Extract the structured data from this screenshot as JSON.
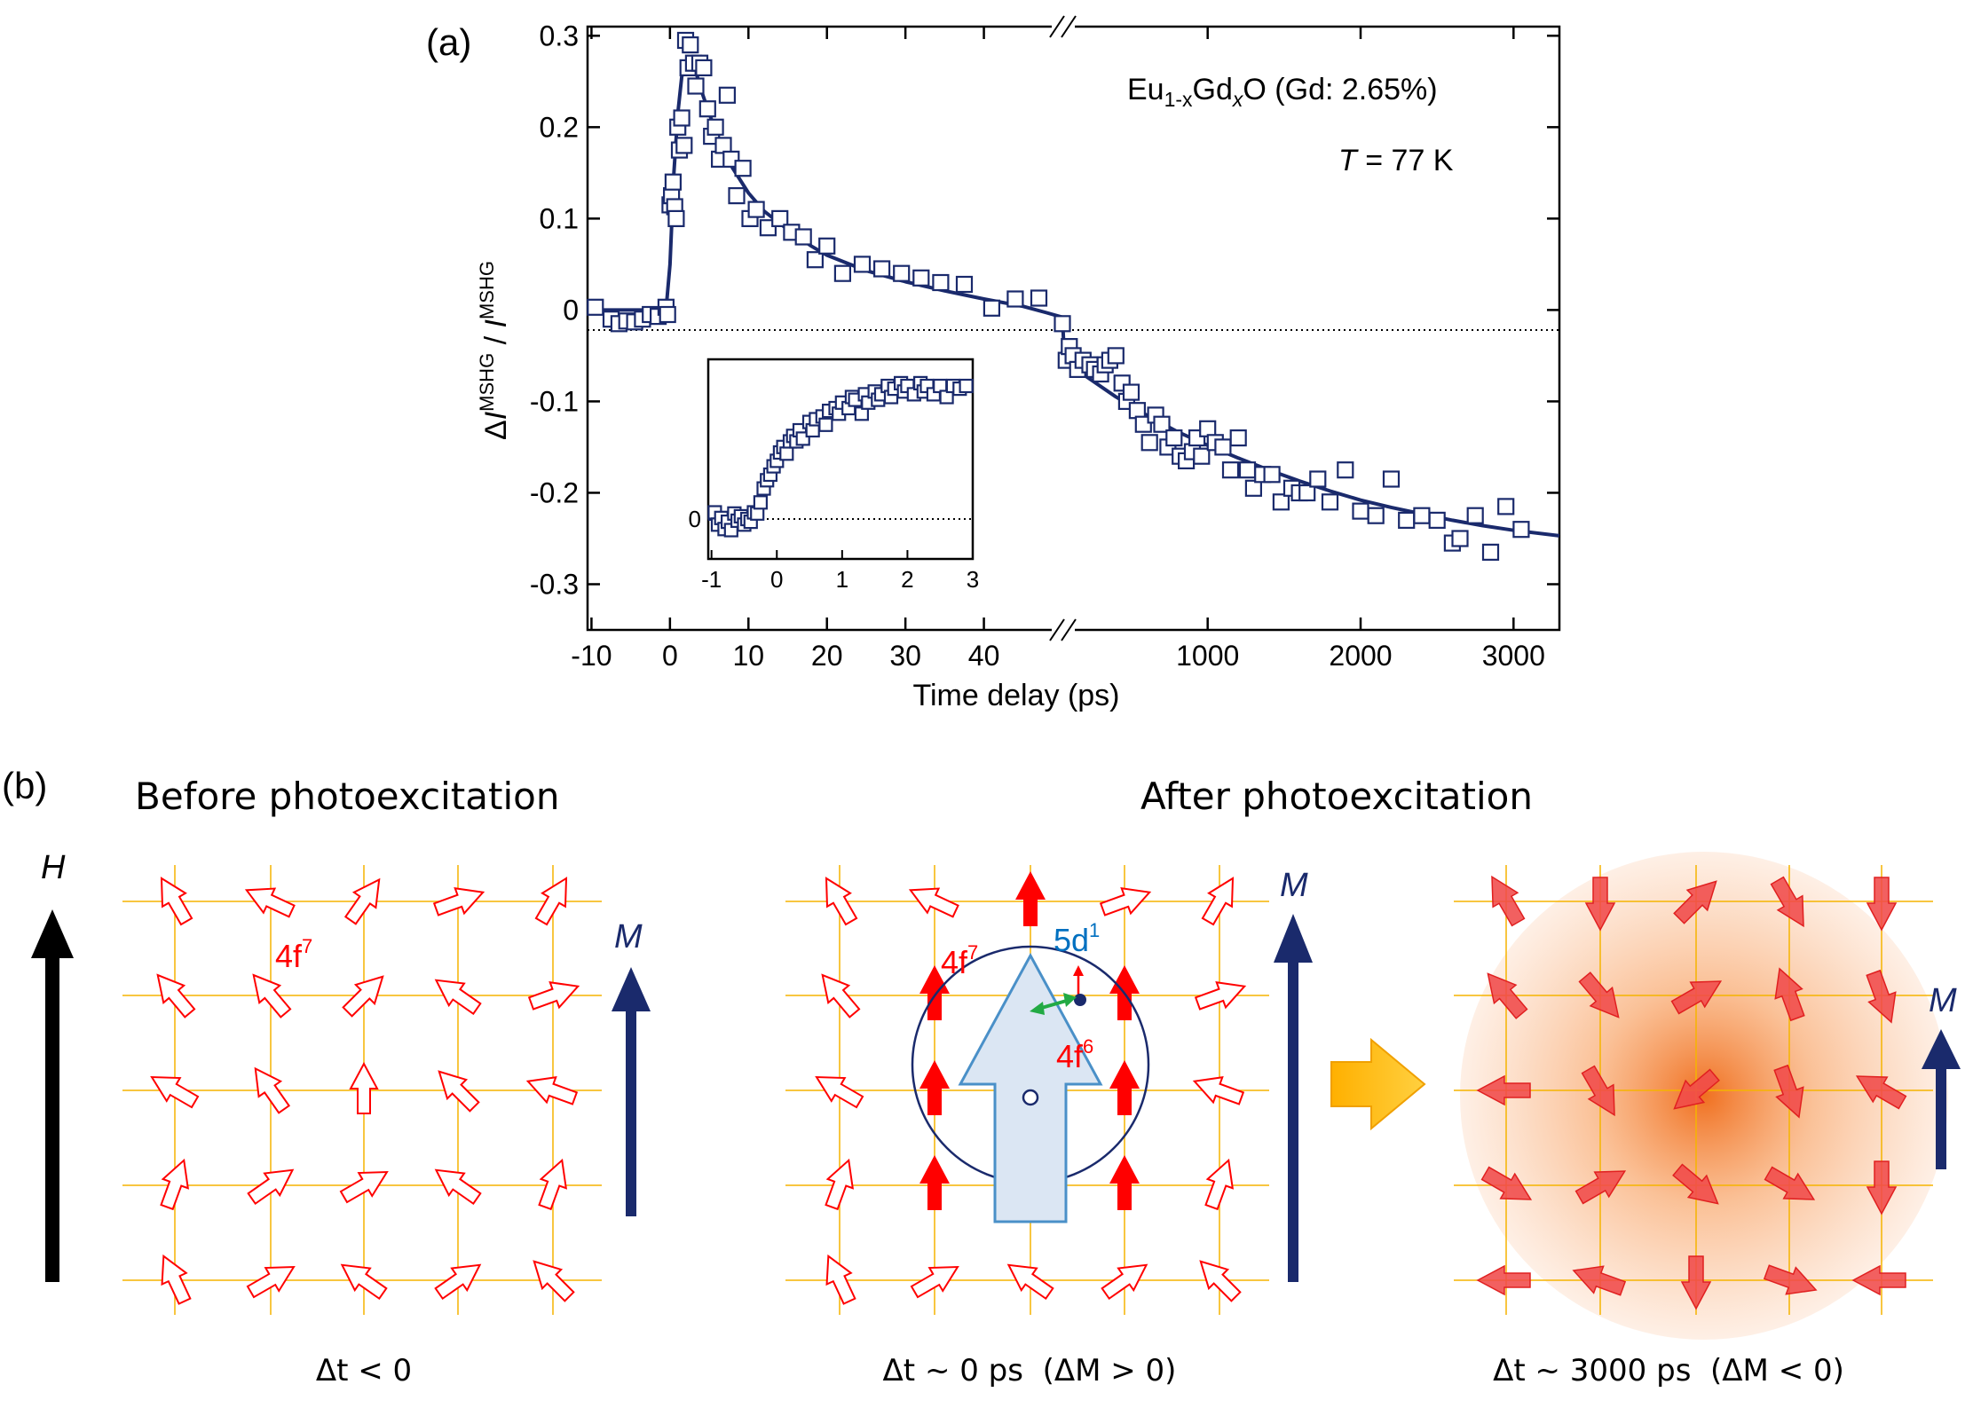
{
  "figure": {
    "panel_a_label": "(a)",
    "panel_b_label": "(b)",
    "before_title": "Before photoexcitation",
    "after_title": "After photoexcitation",
    "caption_before": "Δt < 0",
    "caption_mid": "Δt ~ 0 ps  (ΔM > 0)",
    "caption_late": "Δt ~ 3000 ps  (ΔM < 0)",
    "label_H": "H",
    "label_M": "M",
    "label_4f7": "4f",
    "sup_7": "7",
    "label_4f6": "4f",
    "sup_6": "6",
    "label_5d1": "5d",
    "sup_1": "1",
    "colors": {
      "navy": "#1a2a6c",
      "red": "#ff0000",
      "grid": "#f5b400",
      "blue_label": "#0070c0",
      "arrow_big": "#ffc000",
      "orange": "#f07020"
    }
  },
  "chart_data": [
    {
      "type": "scatter",
      "title": "",
      "sample_label": "Eu1-xGdxO (Gd: 2.65%)",
      "sample_parts": [
        "Eu",
        "1-x",
        "Gd",
        "x",
        "O (Gd: 2.65%)"
      ],
      "temp_label": "T = 77 K",
      "temp_parts": [
        "T",
        " = 77 K"
      ],
      "xlabel": "Time delay (ps)",
      "ylabel_parts": [
        "Δ",
        "I",
        "MSHG",
        " / ",
        "I",
        "MSHG"
      ],
      "ylim": [
        -0.35,
        0.31
      ],
      "yticks": [
        -0.3,
        -0.2,
        -0.1,
        0,
        0.1,
        0.2,
        0.3
      ],
      "ytick_labels": [
        "-0.3",
        "-0.2",
        "-0.1",
        "0",
        "0.1",
        "0.2",
        "0.3"
      ],
      "x_segment_linear": {
        "range": [
          -10.5,
          50
        ],
        "ticks": [
          -10,
          0,
          10,
          20,
          30,
          40
        ],
        "tick_labels": [
          "-10",
          "0",
          "10",
          "20",
          "30",
          "40"
        ]
      },
      "x_segment_broken": {
        "range": [
          50,
          3300
        ],
        "ticks": [
          1000,
          2000,
          3000
        ],
        "tick_labels": [
          "1000",
          "2000",
          "3000"
        ]
      },
      "data_linear": [
        [
          -9.5,
          0.003
        ],
        [
          -7.5,
          -0.01
        ],
        [
          -6.5,
          -0.015
        ],
        [
          -5.5,
          -0.012
        ],
        [
          -4.5,
          -0.013
        ],
        [
          -3.5,
          -0.01
        ],
        [
          -2.5,
          -0.005
        ],
        [
          -1.5,
          -0.007
        ],
        [
          -0.5,
          0.003
        ],
        [
          -0.3,
          -0.005
        ],
        [
          0.0,
          0.115
        ],
        [
          0.2,
          0.125
        ],
        [
          0.4,
          0.14
        ],
        [
          0.6,
          0.113
        ],
        [
          0.8,
          0.1
        ],
        [
          1.0,
          0.2
        ],
        [
          1.2,
          0.175
        ],
        [
          1.5,
          0.21
        ],
        [
          1.8,
          0.18
        ],
        [
          2.0,
          0.295
        ],
        [
          2.3,
          0.265
        ],
        [
          2.6,
          0.29
        ],
        [
          3.0,
          0.27
        ],
        [
          3.3,
          0.245
        ],
        [
          3.8,
          0.27
        ],
        [
          4.3,
          0.265
        ],
        [
          4.8,
          0.22
        ],
        [
          5.3,
          0.19
        ],
        [
          5.8,
          0.2
        ],
        [
          6.3,
          0.165
        ],
        [
          6.8,
          0.18
        ],
        [
          7.3,
          0.235
        ],
        [
          7.8,
          0.165
        ],
        [
          8.5,
          0.125
        ],
        [
          9.3,
          0.155
        ],
        [
          10.2,
          0.1
        ],
        [
          11.0,
          0.11
        ],
        [
          12.5,
          0.09
        ],
        [
          14.0,
          0.1
        ],
        [
          15.5,
          0.085
        ],
        [
          17.0,
          0.08
        ],
        [
          18.5,
          0.055
        ],
        [
          20.0,
          0.07
        ],
        [
          22.0,
          0.04
        ],
        [
          24.5,
          0.05
        ],
        [
          27.0,
          0.045
        ],
        [
          29.5,
          0.04
        ],
        [
          32.0,
          0.035
        ],
        [
          34.5,
          0.03
        ],
        [
          37.5,
          0.028
        ],
        [
          41.0,
          0.002
        ],
        [
          44.0,
          0.012
        ],
        [
          47.0,
          0.013
        ]
      ],
      "data_broken": [
        [
          50,
          -0.015
        ],
        [
          75,
          -0.055
        ],
        [
          95,
          -0.04
        ],
        [
          120,
          -0.05
        ],
        [
          150,
          -0.065
        ],
        [
          185,
          -0.055
        ],
        [
          230,
          -0.06
        ],
        [
          260,
          -0.065
        ],
        [
          300,
          -0.07
        ],
        [
          330,
          -0.06
        ],
        [
          360,
          -0.055
        ],
        [
          400,
          -0.05
        ],
        [
          440,
          -0.08
        ],
        [
          470,
          -0.1
        ],
        [
          500,
          -0.09
        ],
        [
          540,
          -0.11
        ],
        [
          580,
          -0.125
        ],
        [
          620,
          -0.145
        ],
        [
          660,
          -0.115
        ],
        [
          700,
          -0.125
        ],
        [
          740,
          -0.15
        ],
        [
          780,
          -0.14
        ],
        [
          820,
          -0.16
        ],
        [
          860,
          -0.165
        ],
        [
          900,
          -0.155
        ],
        [
          930,
          -0.14
        ],
        [
          960,
          -0.16
        ],
        [
          1000,
          -0.13
        ],
        [
          1050,
          -0.145
        ],
        [
          1100,
          -0.15
        ],
        [
          1150,
          -0.175
        ],
        [
          1200,
          -0.14
        ],
        [
          1260,
          -0.175
        ],
        [
          1300,
          -0.195
        ],
        [
          1360,
          -0.18
        ],
        [
          1420,
          -0.18
        ],
        [
          1480,
          -0.21
        ],
        [
          1550,
          -0.195
        ],
        [
          1600,
          -0.2
        ],
        [
          1650,
          -0.2
        ],
        [
          1720,
          -0.185
        ],
        [
          1800,
          -0.21
        ],
        [
          1900,
          -0.175
        ],
        [
          2000,
          -0.22
        ],
        [
          2100,
          -0.225
        ],
        [
          2200,
          -0.185
        ],
        [
          2300,
          -0.23
        ],
        [
          2400,
          -0.225
        ],
        [
          2500,
          -0.23
        ],
        [
          2600,
          -0.255
        ],
        [
          2650,
          -0.25
        ],
        [
          2750,
          -0.225
        ],
        [
          2850,
          -0.265
        ],
        [
          2950,
          -0.215
        ],
        [
          3050,
          -0.24
        ]
      ],
      "fit_linear": [
        [
          -10.5,
          0.0
        ],
        [
          -0.5,
          0.0
        ],
        [
          0.0,
          0.05
        ],
        [
          0.5,
          0.15
        ],
        [
          1.0,
          0.215
        ],
        [
          1.5,
          0.255
        ],
        [
          2.0,
          0.27
        ],
        [
          2.5,
          0.272
        ],
        [
          3.0,
          0.265
        ],
        [
          3.5,
          0.255
        ],
        [
          4.0,
          0.24
        ],
        [
          5.0,
          0.215
        ],
        [
          6.0,
          0.192
        ],
        [
          7.0,
          0.172
        ],
        [
          8.0,
          0.155
        ],
        [
          10.0,
          0.128
        ],
        [
          12.0,
          0.108
        ],
        [
          15.0,
          0.088
        ],
        [
          18.0,
          0.07
        ],
        [
          20.0,
          0.06
        ],
        [
          25.0,
          0.043
        ],
        [
          30.0,
          0.031
        ],
        [
          35.0,
          0.021
        ],
        [
          40.0,
          0.012
        ],
        [
          45.0,
          0.004
        ],
        [
          48.0,
          -0.003
        ],
        [
          50.0,
          -0.008
        ]
      ],
      "fit_broken": [
        [
          50,
          -0.008
        ],
        [
          60,
          -0.04
        ],
        [
          80,
          -0.055
        ],
        [
          120,
          -0.062
        ],
        [
          200,
          -0.072
        ],
        [
          400,
          -0.095
        ],
        [
          600,
          -0.115
        ],
        [
          800,
          -0.133
        ],
        [
          1000,
          -0.148
        ],
        [
          1200,
          -0.162
        ],
        [
          1400,
          -0.175
        ],
        [
          1600,
          -0.187
        ],
        [
          1800,
          -0.198
        ],
        [
          2000,
          -0.208
        ],
        [
          2200,
          -0.216
        ],
        [
          2400,
          -0.223
        ],
        [
          2600,
          -0.23
        ],
        [
          2800,
          -0.236
        ],
        [
          3000,
          -0.241
        ],
        [
          3300,
          -0.247
        ]
      ]
    },
    {
      "type": "scatter",
      "title": "inset",
      "xlim": [
        -1.05,
        3.0
      ],
      "ylim": [
        -0.04,
        0.32
      ],
      "xticks": [
        -1,
        0,
        1,
        2,
        3
      ],
      "xtick_labels": [
        "-1",
        "0",
        "1",
        "2",
        "3"
      ],
      "ytick_labels": [
        "0"
      ],
      "data": [
        [
          -0.95,
          0.012
        ],
        [
          -0.9,
          -0.01
        ],
        [
          -0.85,
          0.002
        ],
        [
          -0.8,
          -0.018
        ],
        [
          -0.75,
          -0.005
        ],
        [
          -0.7,
          -0.02
        ],
        [
          -0.65,
          0.01
        ],
        [
          -0.6,
          -0.003
        ],
        [
          -0.55,
          0.005
        ],
        [
          -0.5,
          -0.01
        ],
        [
          -0.45,
          0.0
        ],
        [
          -0.4,
          -0.005
        ],
        [
          -0.35,
          0.012
        ],
        [
          -0.3,
          0.01
        ],
        [
          -0.25,
          0.03
        ],
        [
          -0.2,
          0.055
        ],
        [
          -0.15,
          0.07
        ],
        [
          -0.1,
          0.08
        ],
        [
          -0.05,
          0.095
        ],
        [
          0.0,
          0.105
        ],
        [
          0.05,
          0.12
        ],
        [
          0.1,
          0.13
        ],
        [
          0.15,
          0.118
        ],
        [
          0.2,
          0.14
        ],
        [
          0.25,
          0.15
        ],
        [
          0.3,
          0.14
        ],
        [
          0.35,
          0.16
        ],
        [
          0.4,
          0.145
        ],
        [
          0.5,
          0.175
        ],
        [
          0.55,
          0.16
        ],
        [
          0.6,
          0.18
        ],
        [
          0.7,
          0.185
        ],
        [
          0.75,
          0.17
        ],
        [
          0.8,
          0.195
        ],
        [
          0.9,
          0.2
        ],
        [
          0.95,
          0.19
        ],
        [
          1.0,
          0.21
        ],
        [
          1.1,
          0.2
        ],
        [
          1.15,
          0.22
        ],
        [
          1.2,
          0.215
        ],
        [
          1.3,
          0.19
        ],
        [
          1.35,
          0.225
        ],
        [
          1.4,
          0.21
        ],
        [
          1.5,
          0.23
        ],
        [
          1.55,
          0.215
        ],
        [
          1.6,
          0.225
        ],
        [
          1.7,
          0.24
        ],
        [
          1.75,
          0.22
        ],
        [
          1.8,
          0.235
        ],
        [
          1.9,
          0.245
        ],
        [
          1.95,
          0.23
        ],
        [
          2.0,
          0.24
        ],
        [
          2.1,
          0.225
        ],
        [
          2.2,
          0.245
        ],
        [
          2.25,
          0.23
        ],
        [
          2.3,
          0.24
        ],
        [
          2.4,
          0.225
        ],
        [
          2.5,
          0.24
        ],
        [
          2.6,
          0.22
        ],
        [
          2.7,
          0.24
        ],
        [
          2.8,
          0.235
        ],
        [
          2.9,
          0.24
        ]
      ],
      "fit": [
        [
          -1.05,
          0.0
        ],
        [
          -0.4,
          0.0
        ],
        [
          -0.3,
          0.01
        ],
        [
          -0.2,
          0.04
        ],
        [
          -0.1,
          0.07
        ],
        [
          0.0,
          0.095
        ],
        [
          0.2,
          0.13
        ],
        [
          0.4,
          0.155
        ],
        [
          0.6,
          0.175
        ],
        [
          0.8,
          0.19
        ],
        [
          1.0,
          0.202
        ],
        [
          1.3,
          0.215
        ],
        [
          1.6,
          0.225
        ],
        [
          2.0,
          0.232
        ],
        [
          2.5,
          0.237
        ],
        [
          3.0,
          0.24
        ]
      ]
    }
  ]
}
